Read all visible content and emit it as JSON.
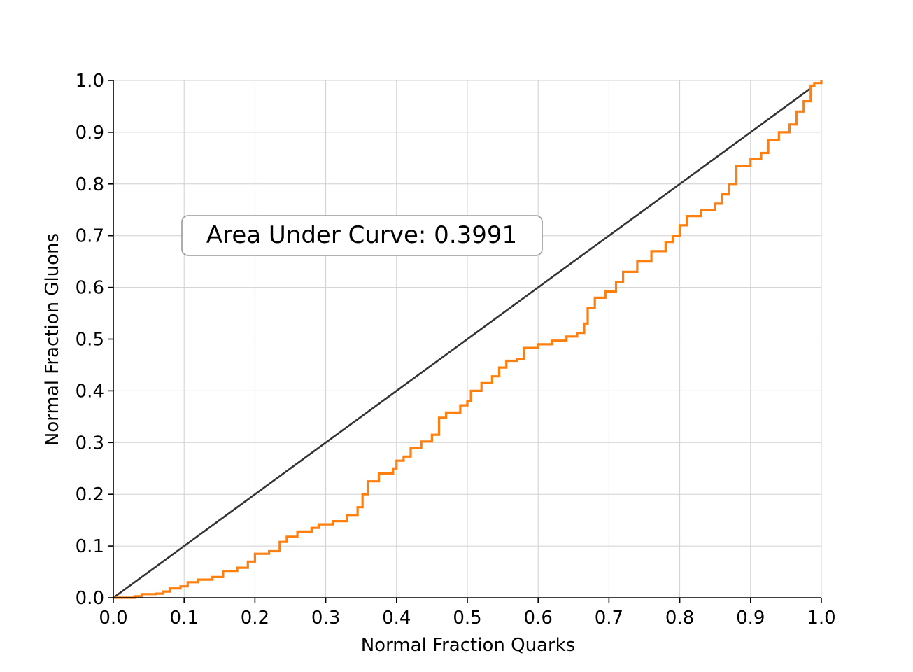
{
  "chart_data": {
    "type": "line",
    "xlabel": "Normal Fraction Quarks",
    "ylabel": "Normal Fraction Gluons",
    "xlim": [
      0.0,
      1.0
    ],
    "ylim": [
      0.0,
      1.0
    ],
    "x_ticks": [
      "0.0",
      "0.1",
      "0.2",
      "0.3",
      "0.4",
      "0.5",
      "0.6",
      "0.7",
      "0.8",
      "0.9",
      "1.0"
    ],
    "y_ticks": [
      "0.0",
      "0.1",
      "0.2",
      "0.3",
      "0.4",
      "0.5",
      "0.6",
      "0.7",
      "0.8",
      "0.9",
      "1.0"
    ],
    "grid": true,
    "annotation": "Area Under Curve: 0.3991",
    "reference_line": {
      "color": "#333333",
      "x": [
        0.0,
        0.985
      ],
      "y": [
        0.0,
        0.985
      ]
    },
    "series": [
      {
        "color": "#ff7f0e",
        "x": [
          0.0,
          0.03,
          0.04,
          0.06,
          0.07,
          0.08,
          0.095,
          0.105,
          0.12,
          0.14,
          0.155,
          0.175,
          0.19,
          0.2,
          0.22,
          0.235,
          0.245,
          0.26,
          0.28,
          0.29,
          0.31,
          0.33,
          0.345,
          0.352,
          0.36,
          0.375,
          0.395,
          0.4,
          0.41,
          0.42,
          0.435,
          0.45,
          0.46,
          0.47,
          0.49,
          0.5,
          0.505,
          0.52,
          0.535,
          0.545,
          0.555,
          0.57,
          0.58,
          0.6,
          0.62,
          0.64,
          0.655,
          0.665,
          0.67,
          0.68,
          0.695,
          0.71,
          0.72,
          0.74,
          0.76,
          0.78,
          0.79,
          0.8,
          0.81,
          0.83,
          0.85,
          0.86,
          0.87,
          0.88,
          0.9,
          0.915,
          0.925,
          0.94,
          0.955,
          0.965,
          0.975,
          0.985,
          0.99,
          1.0
        ],
        "y": [
          0.0,
          0.003,
          0.007,
          0.008,
          0.012,
          0.018,
          0.022,
          0.03,
          0.035,
          0.04,
          0.052,
          0.058,
          0.07,
          0.085,
          0.09,
          0.108,
          0.118,
          0.128,
          0.135,
          0.142,
          0.148,
          0.16,
          0.175,
          0.2,
          0.225,
          0.24,
          0.25,
          0.265,
          0.273,
          0.29,
          0.302,
          0.315,
          0.348,
          0.358,
          0.372,
          0.38,
          0.4,
          0.415,
          0.428,
          0.445,
          0.458,
          0.462,
          0.483,
          0.49,
          0.497,
          0.505,
          0.512,
          0.53,
          0.56,
          0.58,
          0.592,
          0.61,
          0.63,
          0.65,
          0.67,
          0.688,
          0.7,
          0.72,
          0.738,
          0.75,
          0.762,
          0.78,
          0.8,
          0.835,
          0.848,
          0.86,
          0.885,
          0.9,
          0.915,
          0.94,
          0.96,
          0.99,
          0.995,
          1.0
        ]
      }
    ]
  }
}
